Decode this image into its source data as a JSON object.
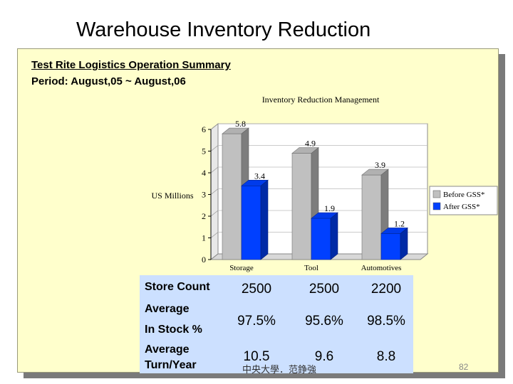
{
  "slide": {
    "title": "Warehouse Inventory Reduction",
    "subtitle1": "Test Rite Logistics Operation Summary",
    "subtitle2": "Period: August,05 ~ August,06",
    "footer": "中央大學．范錚強",
    "page_number": "82"
  },
  "chart_data": {
    "type": "bar",
    "title": "Inventory Reduction Management",
    "ylabel": "US Millions",
    "xlabel": "",
    "ylim": [
      0,
      6
    ],
    "yticks": [
      "0",
      "1",
      "2",
      "3",
      "4",
      "5",
      "6"
    ],
    "categories": [
      "Storage",
      "Tool",
      "Automotives"
    ],
    "series": [
      {
        "name": "Before GSS*",
        "values": [
          5.8,
          4.9,
          3.9
        ],
        "labels": [
          "5.8",
          "4.9",
          "3.9"
        ],
        "color": "#c0c0c0"
      },
      {
        "name": "After GSS*",
        "values": [
          3.4,
          1.9,
          1.2
        ],
        "labels": [
          "3.4",
          "1.9",
          "1.2"
        ],
        "color": "#0040ff"
      }
    ],
    "legend_position": "right",
    "style": "3d"
  },
  "stats": {
    "rows": [
      {
        "label_lines": [
          "Store Count"
        ],
        "values": [
          "2500",
          "2500",
          "2200"
        ]
      },
      {
        "label_lines": [
          "Average",
          "In Stock %"
        ],
        "values": [
          "97.5%",
          "95.6%",
          "98.5%"
        ]
      },
      {
        "label_lines": [
          "Average",
          "Turn/Year"
        ],
        "values": [
          "10.5",
          "9.6",
          "8.8"
        ]
      }
    ]
  },
  "colors": {
    "card_bg": "#ffffcc",
    "stats_bg": "#cce0ff",
    "plot_bg": "#ffffff"
  }
}
